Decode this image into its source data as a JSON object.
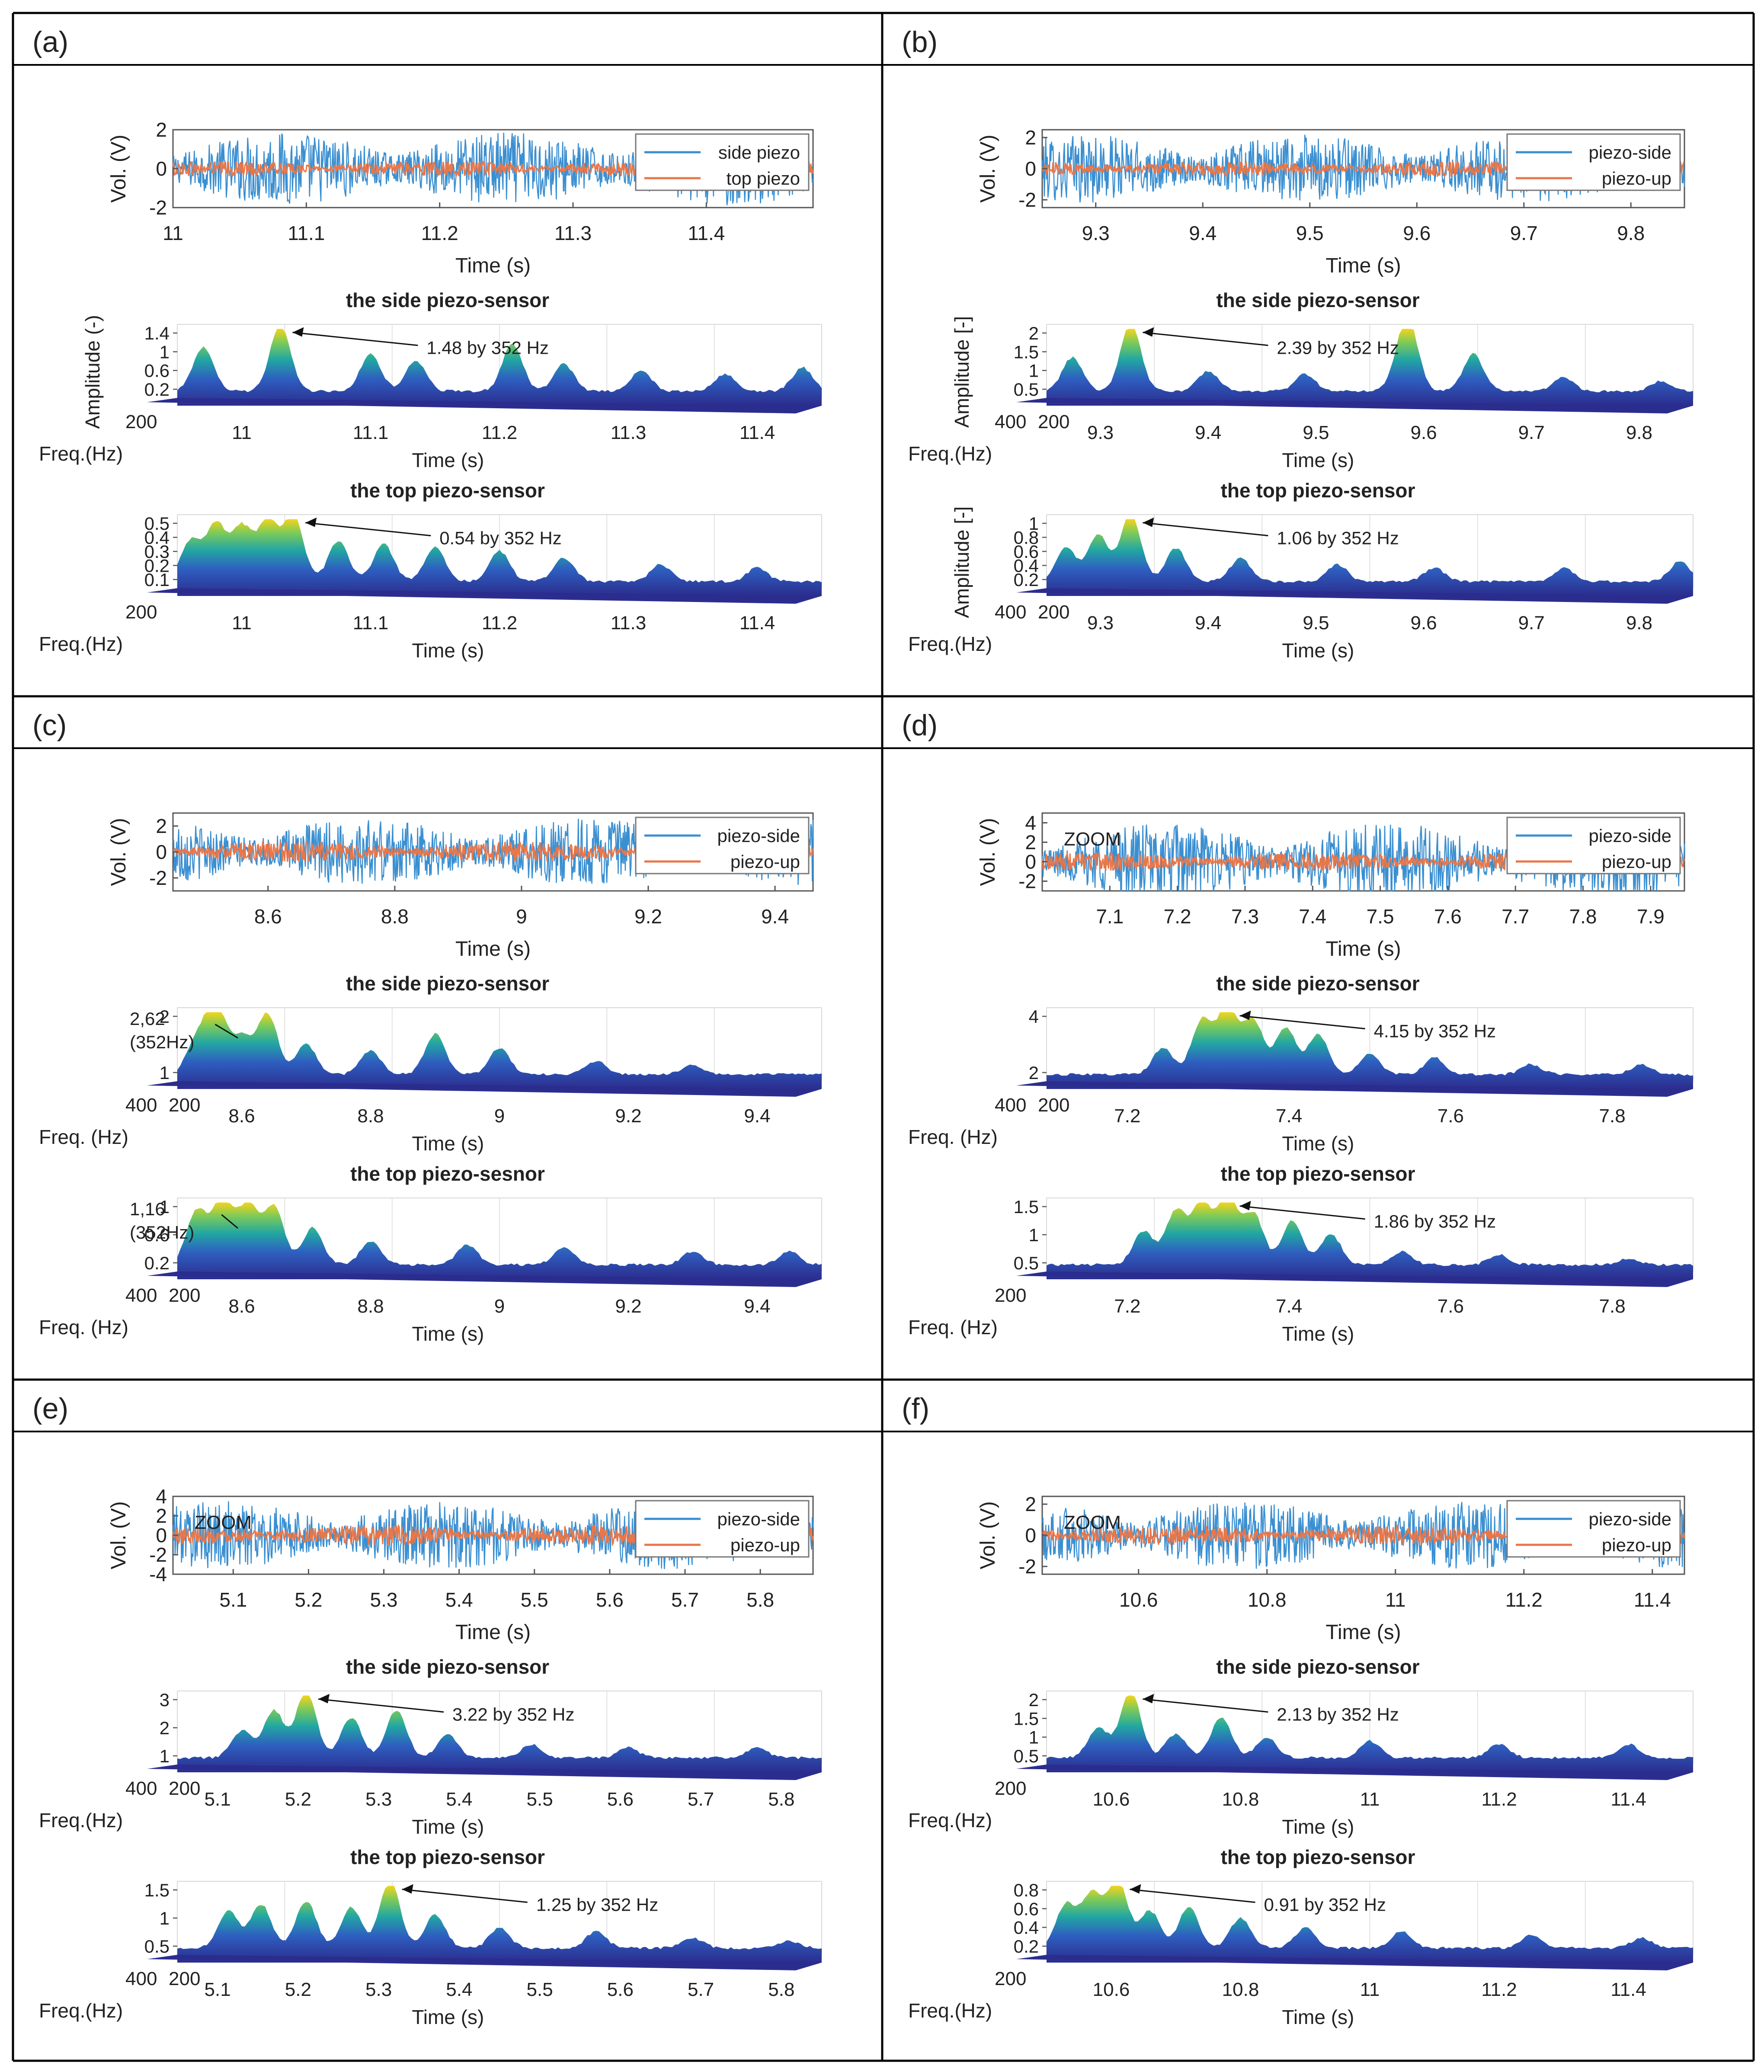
{
  "colors": {
    "border": "#000000",
    "side_trace": "#3a8fd1",
    "top_trace": "#e8774a",
    "surface_low": "#2b2d8e",
    "surface_mid": "#22a7a2",
    "surface_high": "#f2d41c",
    "axis": "#555555",
    "grid": "#d8d8d8"
  },
  "chart_data": [
    {
      "panel": "(a)",
      "type": "line",
      "title": "",
      "ylabel": "Vol. (V)",
      "xlabel": "Time (s)",
      "xlim": [
        11,
        11.48
      ],
      "ylim": [
        -2,
        2
      ],
      "xticks": [
        "11",
        "11.1",
        "11.2",
        "11.3",
        "11.4"
      ],
      "yticks": [
        "2",
        "0",
        "-2"
      ],
      "legend": [
        "side piezo",
        "top piezo"
      ],
      "zoom_label": "",
      "series": [
        {
          "name": "side piezo",
          "amplitude": 1.9
        },
        {
          "name": "top piezo",
          "amplitude": 0.5
        }
      ],
      "spectra": [
        {
          "type": "area",
          "title": "the side piezo-sensor",
          "zlabel": "Amplitude (-)",
          "zticks": [
            "1.4",
            "1",
            "0.6",
            "0.2"
          ],
          "freq_label": "Freq.(Hz)",
          "freq_ticks": [
            "200"
          ],
          "time_label": "Time (s)",
          "time_ticks": [
            "11",
            "11.1",
            "11.2",
            "11.3",
            "11.4"
          ],
          "annotation": "1.48 by 352 Hz",
          "peak_value": 1.48,
          "peaks": [
            [
              0.04,
              0.65
            ],
            [
              0.16,
              1.0
            ],
            [
              0.3,
              0.55
            ],
            [
              0.37,
              0.45
            ],
            [
              0.52,
              0.7
            ],
            [
              0.6,
              0.4
            ],
            [
              0.72,
              0.3
            ],
            [
              0.85,
              0.25
            ],
            [
              0.97,
              0.35
            ]
          ]
        },
        {
          "type": "area",
          "title": "the top piezo-sensor",
          "zlabel": "",
          "zticks": [
            "0.5",
            "0.4",
            "0.3",
            "0.2",
            "0.1"
          ],
          "freq_label": "Freq.(Hz)",
          "freq_ticks": [
            "200"
          ],
          "time_label": "Time (s)",
          "time_ticks": [
            "11",
            "11.1",
            "11.2",
            "11.3",
            "11.4"
          ],
          "annotation": "0.54 by 352 Hz",
          "peak_value": 0.54,
          "peaks": [
            [
              0.02,
              0.6
            ],
            [
              0.06,
              0.85
            ],
            [
              0.1,
              0.8
            ],
            [
              0.14,
              0.9
            ],
            [
              0.18,
              1.0
            ],
            [
              0.25,
              0.6
            ],
            [
              0.32,
              0.55
            ],
            [
              0.4,
              0.5
            ],
            [
              0.5,
              0.45
            ],
            [
              0.6,
              0.35
            ],
            [
              0.75,
              0.25
            ],
            [
              0.9,
              0.2
            ]
          ]
        }
      ]
    },
    {
      "panel": "(b)",
      "type": "line",
      "title": "",
      "ylabel": "Vol. (V)",
      "xlabel": "Time (s)",
      "xlim": [
        9.25,
        9.85
      ],
      "ylim": [
        -2.5,
        2.5
      ],
      "xticks": [
        "9.3",
        "9.4",
        "9.5",
        "9.6",
        "9.7",
        "9.8"
      ],
      "yticks": [
        "2",
        "0",
        "-2"
      ],
      "legend": [
        "piezo-side",
        "piezo-up"
      ],
      "zoom_label": "",
      "series": [
        {
          "name": "piezo-side",
          "amplitude": 2.2
        },
        {
          "name": "piezo-up",
          "amplitude": 0.6
        }
      ],
      "spectra": [
        {
          "type": "area",
          "title": "the side piezo-sensor",
          "zlabel": "Amplitude [-]",
          "zticks": [
            "2",
            "1.5",
            "1",
            "0.5"
          ],
          "freq_label": "Freq.(Hz)",
          "freq_ticks": [
            "400",
            "200"
          ],
          "time_label": "Time (s)",
          "time_ticks": [
            "9.3",
            "9.4",
            "9.5",
            "9.6",
            "9.7",
            "9.8"
          ],
          "annotation": "2.39 by 352 Hz",
          "peak_value": 2.39,
          "peaks": [
            [
              0.04,
              0.5
            ],
            [
              0.13,
              1.0
            ],
            [
              0.25,
              0.3
            ],
            [
              0.4,
              0.25
            ],
            [
              0.55,
              0.3
            ],
            [
              0.56,
              0.85
            ],
            [
              0.66,
              0.55
            ],
            [
              0.8,
              0.2
            ],
            [
              0.95,
              0.15
            ]
          ]
        },
        {
          "type": "area",
          "title": "the top piezo-sensor",
          "zlabel": "Amplitude [-]",
          "zticks": [
            "1",
            "0.8",
            "0.6",
            "0.4",
            "0.2"
          ],
          "freq_label": "Freq.(Hz)",
          "freq_ticks": [
            "400",
            "200"
          ],
          "time_label": "Time (s)",
          "time_ticks": [
            "9.3",
            "9.4",
            "9.5",
            "9.6",
            "9.7",
            "9.8"
          ],
          "annotation": "1.06 by 352 Hz",
          "peak_value": 1.06,
          "peaks": [
            [
              0.03,
              0.5
            ],
            [
              0.08,
              0.7
            ],
            [
              0.13,
              1.0
            ],
            [
              0.2,
              0.5
            ],
            [
              0.3,
              0.35
            ],
            [
              0.45,
              0.25
            ],
            [
              0.6,
              0.2
            ],
            [
              0.8,
              0.2
            ],
            [
              0.98,
              0.3
            ]
          ]
        }
      ]
    },
    {
      "panel": "(c)",
      "type": "line",
      "title": "",
      "ylabel": "Vol. (V)",
      "xlabel": "Time (s)",
      "xlim": [
        8.45,
        9.46
      ],
      "ylim": [
        -3,
        3
      ],
      "xticks": [
        "8.6",
        "8.8",
        "9",
        "9.2",
        "9.4"
      ],
      "yticks": [
        "2",
        "0",
        "-2"
      ],
      "legend": [
        "piezo-side",
        "piezo-up"
      ],
      "zoom_label": "",
      "series": [
        {
          "name": "piezo-side",
          "amplitude": 2.6
        },
        {
          "name": "piezo-up",
          "amplitude": 1.0
        }
      ],
      "spectra": [
        {
          "type": "area",
          "title": "the side piezo-sensor",
          "zlabel": "",
          "zticks": [
            "2",
            "1"
          ],
          "freq_label": "Freq. (Hz)",
          "freq_ticks": [
            "400",
            "200"
          ],
          "time_label": "Time (s)",
          "time_ticks": [
            "8.6",
            "8.8",
            "9",
            "9.2",
            "9.4"
          ],
          "annotation": "2,62\n(352Hz)",
          "peak_value": 2.62,
          "peaks": [
            [
              0.03,
              0.5
            ],
            [
              0.06,
              1.0
            ],
            [
              0.1,
              0.55
            ],
            [
              0.14,
              0.9
            ],
            [
              0.2,
              0.45
            ],
            [
              0.3,
              0.35
            ],
            [
              0.4,
              0.6
            ],
            [
              0.5,
              0.4
            ],
            [
              0.65,
              0.2
            ],
            [
              0.8,
              0.15
            ]
          ]
        },
        {
          "type": "area",
          "title": "the top piezo-sesnor",
          "zlabel": "",
          "zticks": [
            "1",
            "0.6",
            "0.2"
          ],
          "freq_label": "Freq. (Hz)",
          "freq_ticks": [
            "400",
            "200"
          ],
          "time_label": "Time (s)",
          "time_ticks": [
            "8.6",
            "8.8",
            "9",
            "9.2",
            "9.4"
          ],
          "annotation": "1,16\n(352Hz)",
          "peak_value": 1.16,
          "peaks": [
            [
              0.03,
              0.8
            ],
            [
              0.07,
              1.0
            ],
            [
              0.11,
              0.9
            ],
            [
              0.15,
              0.85
            ],
            [
              0.21,
              0.55
            ],
            [
              0.3,
              0.35
            ],
            [
              0.45,
              0.3
            ],
            [
              0.6,
              0.25
            ],
            [
              0.8,
              0.2
            ],
            [
              0.95,
              0.2
            ]
          ]
        }
      ]
    },
    {
      "panel": "(d)",
      "type": "line",
      "title": "",
      "ylabel": "Vol. (V)",
      "xlabel": "Time (s)",
      "xlim": [
        7.0,
        7.95
      ],
      "ylim": [
        -3,
        5
      ],
      "xticks": [
        "7.1",
        "7.2",
        "7.3",
        "7.4",
        "7.5",
        "7.6",
        "7.7",
        "7.8",
        "7.9"
      ],
      "yticks": [
        "4",
        "2",
        "0",
        "-2"
      ],
      "legend": [
        "piezo-side",
        "piezo-up"
      ],
      "zoom_label": "ZOOM",
      "series": [
        {
          "name": "piezo-side",
          "amplitude": 4.0
        },
        {
          "name": "piezo-up",
          "amplitude": 1.2
        }
      ],
      "spectra": [
        {
          "type": "area",
          "title": "the side piezo-sensor",
          "zlabel": "",
          "zticks": [
            "4",
            "2"
          ],
          "freq_label": "Freq. (Hz)",
          "freq_ticks": [
            "400",
            "200"
          ],
          "time_label": "Time (s)",
          "time_ticks": [
            "7.2",
            "7.4",
            "7.6",
            "7.8"
          ],
          "annotation": "4.15 by 352 Hz",
          "peak_value": 4.15,
          "peaks": [
            [
              0.18,
              0.4
            ],
            [
              0.24,
              0.8
            ],
            [
              0.28,
              1.0
            ],
            [
              0.32,
              0.8
            ],
            [
              0.37,
              0.7
            ],
            [
              0.42,
              0.6
            ],
            [
              0.5,
              0.3
            ],
            [
              0.6,
              0.25
            ],
            [
              0.75,
              0.15
            ],
            [
              0.92,
              0.15
            ]
          ]
        },
        {
          "type": "area",
          "title": "the top piezo-sensor",
          "zlabel": "",
          "zticks": [
            "1.5",
            "1",
            "0.5"
          ],
          "freq_label": "Freq. (Hz)",
          "freq_ticks": [
            "200"
          ],
          "time_label": "Time (s)",
          "time_ticks": [
            "7.2",
            "7.4",
            "7.6",
            "7.8"
          ],
          "annotation": "1.86 by 352 Hz",
          "peak_value": 1.86,
          "peaks": [
            [
              0.15,
              0.5
            ],
            [
              0.2,
              0.8
            ],
            [
              0.24,
              0.9
            ],
            [
              0.28,
              1.0
            ],
            [
              0.32,
              0.75
            ],
            [
              0.38,
              0.65
            ],
            [
              0.44,
              0.45
            ],
            [
              0.55,
              0.2
            ],
            [
              0.7,
              0.15
            ],
            [
              0.9,
              0.1
            ]
          ]
        }
      ]
    },
    {
      "panel": "(e)",
      "type": "line",
      "title": "",
      "ylabel": "Vol. (V)",
      "xlabel": "Time (s)",
      "xlim": [
        5.02,
        5.87
      ],
      "ylim": [
        -4,
        4
      ],
      "xticks": [
        "5.1",
        "5.2",
        "5.3",
        "5.4",
        "5.5",
        "5.6",
        "5.7",
        "5.8"
      ],
      "yticks": [
        "4",
        "2",
        "0",
        "-2",
        "-4"
      ],
      "legend": [
        "piezo-side",
        "piezo-up"
      ],
      "zoom_label": "ZOOM",
      "series": [
        {
          "name": "piezo-side",
          "amplitude": 3.5
        },
        {
          "name": "piezo-up",
          "amplitude": 1.3
        }
      ],
      "spectra": [
        {
          "type": "area",
          "title": "the side piezo-sensor",
          "zlabel": "",
          "zticks": [
            "3",
            "2",
            "1"
          ],
          "freq_label": "Freq.(Hz)",
          "freq_ticks": [
            "400",
            "200"
          ],
          "time_label": "Time (s)",
          "time_ticks": [
            "5.1",
            "5.2",
            "5.3",
            "5.4",
            "5.5",
            "5.6",
            "5.7",
            "5.8"
          ],
          "annotation": "3.22 by 352 Hz",
          "peak_value": 3.22,
          "peaks": [
            [
              0.1,
              0.4
            ],
            [
              0.15,
              0.7
            ],
            [
              0.2,
              1.0
            ],
            [
              0.27,
              0.6
            ],
            [
              0.34,
              0.7
            ],
            [
              0.42,
              0.35
            ],
            [
              0.55,
              0.2
            ],
            [
              0.7,
              0.15
            ],
            [
              0.9,
              0.15
            ]
          ]
        },
        {
          "type": "area",
          "title": "the top piezo-sensor",
          "zlabel": "",
          "zticks": [
            "1.5",
            "1",
            "0.5"
          ],
          "freq_label": "Freq.(Hz)",
          "freq_ticks": [
            "400",
            "200"
          ],
          "time_label": "Time (s)",
          "time_ticks": [
            "5.1",
            "5.2",
            "5.3",
            "5.4",
            "5.5",
            "5.6",
            "5.7",
            "5.8"
          ],
          "annotation": "1.25 by 352 Hz",
          "peak_value": 1.25,
          "peaks": [
            [
              0.08,
              0.55
            ],
            [
              0.13,
              0.65
            ],
            [
              0.2,
              0.7
            ],
            [
              0.27,
              0.6
            ],
            [
              0.33,
              1.0
            ],
            [
              0.4,
              0.5
            ],
            [
              0.5,
              0.3
            ],
            [
              0.65,
              0.25
            ],
            [
              0.8,
              0.15
            ],
            [
              0.95,
              0.1
            ]
          ]
        }
      ]
    },
    {
      "panel": "(f)",
      "type": "line",
      "title": "",
      "ylabel": "Vol. (V)",
      "xlabel": "Time (s)",
      "xlim": [
        10.45,
        11.45
      ],
      "ylim": [
        -2.5,
        2.5
      ],
      "xticks": [
        "10.6",
        "10.8",
        "11",
        "11.2",
        "11.4"
      ],
      "yticks": [
        "2",
        "0",
        "-2"
      ],
      "legend": [
        "piezo-side",
        "piezo-up"
      ],
      "zoom_label": "ZOOM",
      "series": [
        {
          "name": "piezo-side",
          "amplitude": 2.2
        },
        {
          "name": "piezo-up",
          "amplitude": 0.8
        }
      ],
      "spectra": [
        {
          "type": "area",
          "title": "the side piezo-sensor",
          "zlabel": "",
          "zticks": [
            "2",
            "1.5",
            "1",
            "0.5"
          ],
          "freq_label": "Freq.(Hz)",
          "freq_ticks": [
            "200"
          ],
          "time_label": "Time (s)",
          "time_ticks": [
            "10.6",
            "10.8",
            "11",
            "11.2",
            "11.4"
          ],
          "annotation": "2.13 by 352 Hz",
          "peak_value": 2.13,
          "peaks": [
            [
              0.08,
              0.45
            ],
            [
              0.13,
              1.0
            ],
            [
              0.2,
              0.35
            ],
            [
              0.27,
              0.6
            ],
            [
              0.34,
              0.3
            ],
            [
              0.5,
              0.25
            ],
            [
              0.7,
              0.2
            ],
            [
              0.9,
              0.2
            ]
          ]
        },
        {
          "type": "area",
          "title": "the top piezo-sensor",
          "zlabel": "",
          "zticks": [
            "0.8",
            "0.6",
            "0.4",
            "0.2"
          ],
          "freq_label": "Freq.(Hz)",
          "freq_ticks": [
            "200"
          ],
          "time_label": "Time (s)",
          "time_ticks": [
            "10.6",
            "10.8",
            "11",
            "11.2",
            "11.4"
          ],
          "annotation": "0.91 by 352 Hz",
          "peak_value": 0.91,
          "peaks": [
            [
              0.03,
              0.65
            ],
            [
              0.07,
              0.8
            ],
            [
              0.11,
              1.0
            ],
            [
              0.16,
              0.55
            ],
            [
              0.22,
              0.6
            ],
            [
              0.3,
              0.45
            ],
            [
              0.4,
              0.3
            ],
            [
              0.55,
              0.25
            ],
            [
              0.75,
              0.2
            ],
            [
              0.92,
              0.15
            ]
          ]
        }
      ]
    }
  ]
}
